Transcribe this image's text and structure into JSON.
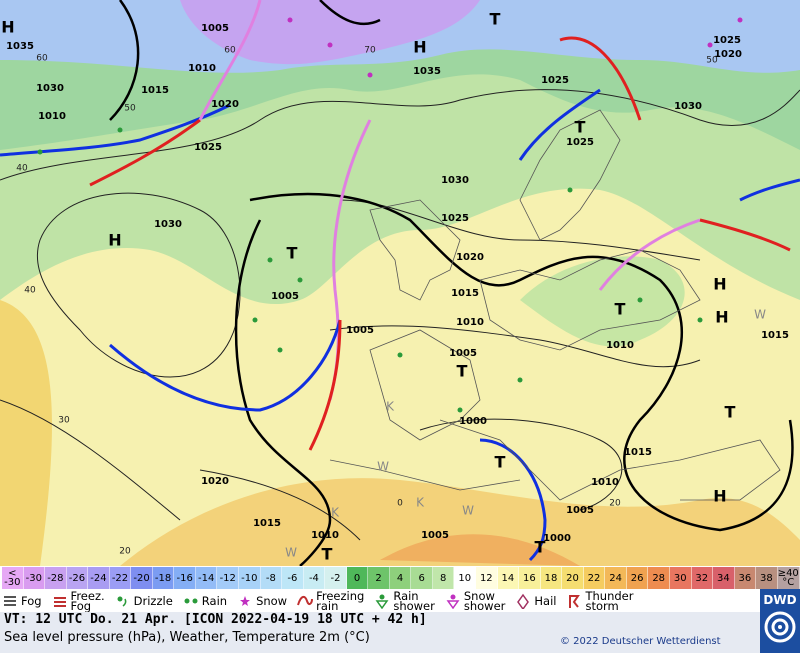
{
  "map": {
    "pressure_labels": [
      "1035",
      "1030",
      "1010",
      "1015",
      "1010",
      "1005",
      "1020",
      "1025",
      "1030",
      "1035",
      "1030",
      "1025",
      "1020",
      "1015",
      "1010",
      "1005",
      "1005",
      "1005",
      "1000",
      "1025",
      "1025",
      "1030",
      "1025",
      "1020",
      "1010",
      "1015",
      "1015",
      "1010",
      "1005",
      "1000",
      "1005",
      "1010",
      "1015",
      "1020"
    ],
    "isotherm_labels": [
      "60",
      "50",
      "40",
      "40",
      "30",
      "20",
      "60",
      "70",
      "50",
      "20",
      "0"
    ],
    "highs": [
      "H",
      "H",
      "H",
      "H",
      "H",
      "H"
    ],
    "lows": [
      "T",
      "T",
      "T",
      "T",
      "T",
      "T",
      "T",
      "T",
      "T"
    ],
    "markers": [
      "K",
      "W",
      "K",
      "W",
      "K",
      "W",
      "W"
    ]
  },
  "temperature_scale": {
    "first": {
      "top": "<",
      "bottom": "-30"
    },
    "labels": [
      "-30",
      "-28",
      "-26",
      "-24",
      "-22",
      "-20",
      "-18",
      "-16",
      "-14",
      "-12",
      "-10",
      "-8",
      "-6",
      "-4",
      "-2",
      "0",
      "2",
      "4",
      "6",
      "8",
      "10",
      "12",
      "14",
      "16",
      "18",
      "20",
      "22",
      "24",
      "26",
      "28",
      "30",
      "32",
      "34",
      "36",
      "38"
    ],
    "last": {
      "top": "≥40",
      "bottom": "°C"
    },
    "colors": [
      "#e6a8f5",
      "#d99cf0",
      "#c8a0f0",
      "#b9a4f2",
      "#a99cf2",
      "#9b9df5",
      "#7e8ef0",
      "#7b9cf2",
      "#84aef5",
      "#93bcf7",
      "#a3cbf8",
      "#a8d2f8",
      "#b3dcf7",
      "#bde6f7",
      "#c8ecf3",
      "#d5f0ee",
      "#4fb85a",
      "#6ec46a",
      "#8ed07c",
      "#a8dc94",
      "#c0e6aa",
      "#ffffff",
      "#fffde0",
      "#fcf7b4",
      "#f8f09a",
      "#f6e680",
      "#f5dd70",
      "#f5cc60",
      "#f3b858",
      "#f0a250",
      "#ee8c50",
      "#e87660",
      "#e06868",
      "#d8606a",
      "#c88870",
      "#b89080",
      "#b4a0a0"
    ]
  },
  "weather_legend": [
    "Fog",
    "Freez.\nFog",
    "Drizzle",
    "Rain",
    "Snow",
    "Freezing\nrain",
    "Rain\nshower",
    "Snow\nshower",
    "Hail",
    "Thunder\nstorm"
  ],
  "logo": "DWD",
  "footer": {
    "valid_time": "VT: 12 UTC Do.  21 Apr. [ICON 2022-04-19  18 UTC + 42 h]",
    "description": "Sea level pressure (hPa), Weather, Temperature 2m (°C)",
    "copyright": "© 2022 Deutscher Wetterdienst"
  }
}
